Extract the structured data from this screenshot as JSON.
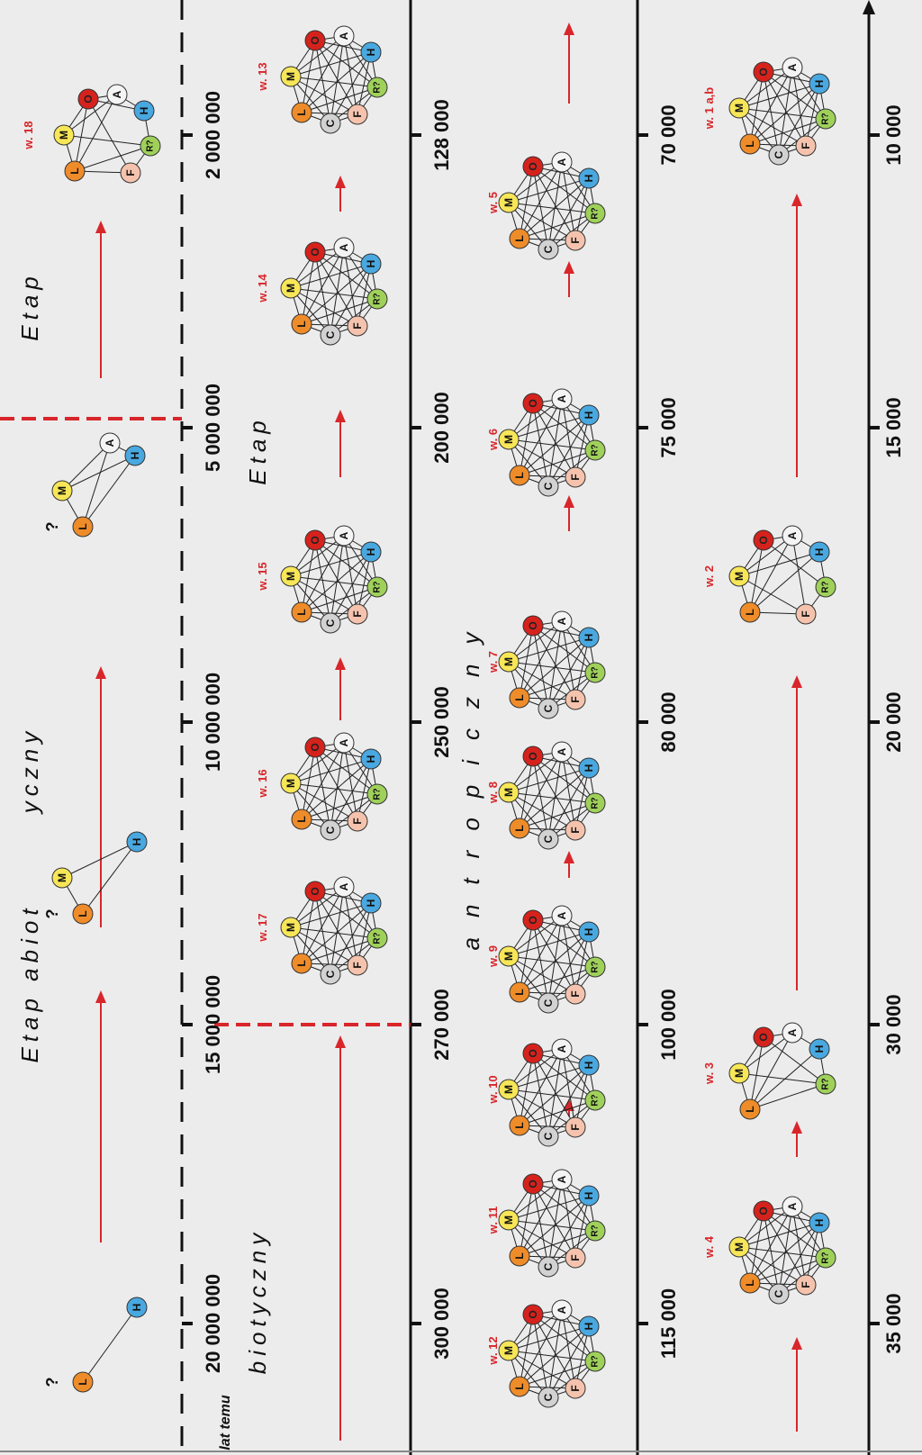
{
  "colors": {
    "background": "#ececec",
    "arrow": "#d8262a",
    "boundary_dashed": "#d8262a",
    "axis": "#111111",
    "node_L": "#ef8c2a",
    "node_M": "#f7e657",
    "node_O": "#d6221c",
    "node_A": "#f4f4f4",
    "node_H": "#49a8e0",
    "node_R": "#9fd15a",
    "node_F": "#f5c3ad",
    "node_C": "#d2d2d2"
  },
  "time_unit_label": "lat temu",
  "stage_labels": {
    "abiotic_part1": "Etap abiot",
    "abiotic_part2": "yczny",
    "biotic_etap": "Etap",
    "biotic_word": "biotyczny",
    "anthropic_etap": "Etap",
    "anthropic_word": "antropiczny"
  },
  "band_ticks": {
    "band1": [
      "20 000 000",
      "15 000 000",
      "10 000 000",
      "5 000 000",
      "2 000 000"
    ],
    "band2": [
      "300 000",
      "270 000",
      "250 000",
      "200 000",
      "128 000"
    ],
    "band3": [
      "115 000",
      "100 000",
      "80 000",
      "75 000",
      "70 000"
    ],
    "band4": [
      "35 000",
      "30 000",
      "20 000",
      "15 000",
      "10 000"
    ]
  },
  "node_labels": {
    "L": "L",
    "M": "M",
    "O": "O",
    "A": "A",
    "H": "H",
    "R": "R?",
    "F": "F",
    "C": "C",
    "question": "?"
  },
  "stages": [
    {
      "label": "w. 18"
    },
    {
      "label": "w. 17"
    },
    {
      "label": "w. 16"
    },
    {
      "label": "w. 15"
    },
    {
      "label": "w. 14"
    },
    {
      "label": "w. 13"
    },
    {
      "label": "w. 12"
    },
    {
      "label": "w. 11"
    },
    {
      "label": "w. 10"
    },
    {
      "label": "w. 9"
    },
    {
      "label": "w. 8"
    },
    {
      "label": "w. 7"
    },
    {
      "label": "w. 6"
    },
    {
      "label": "w. 5"
    },
    {
      "label": "w. 4"
    },
    {
      "label": "w. 3"
    },
    {
      "label": "w. 2"
    },
    {
      "label": "w. 1 a,b"
    }
  ]
}
